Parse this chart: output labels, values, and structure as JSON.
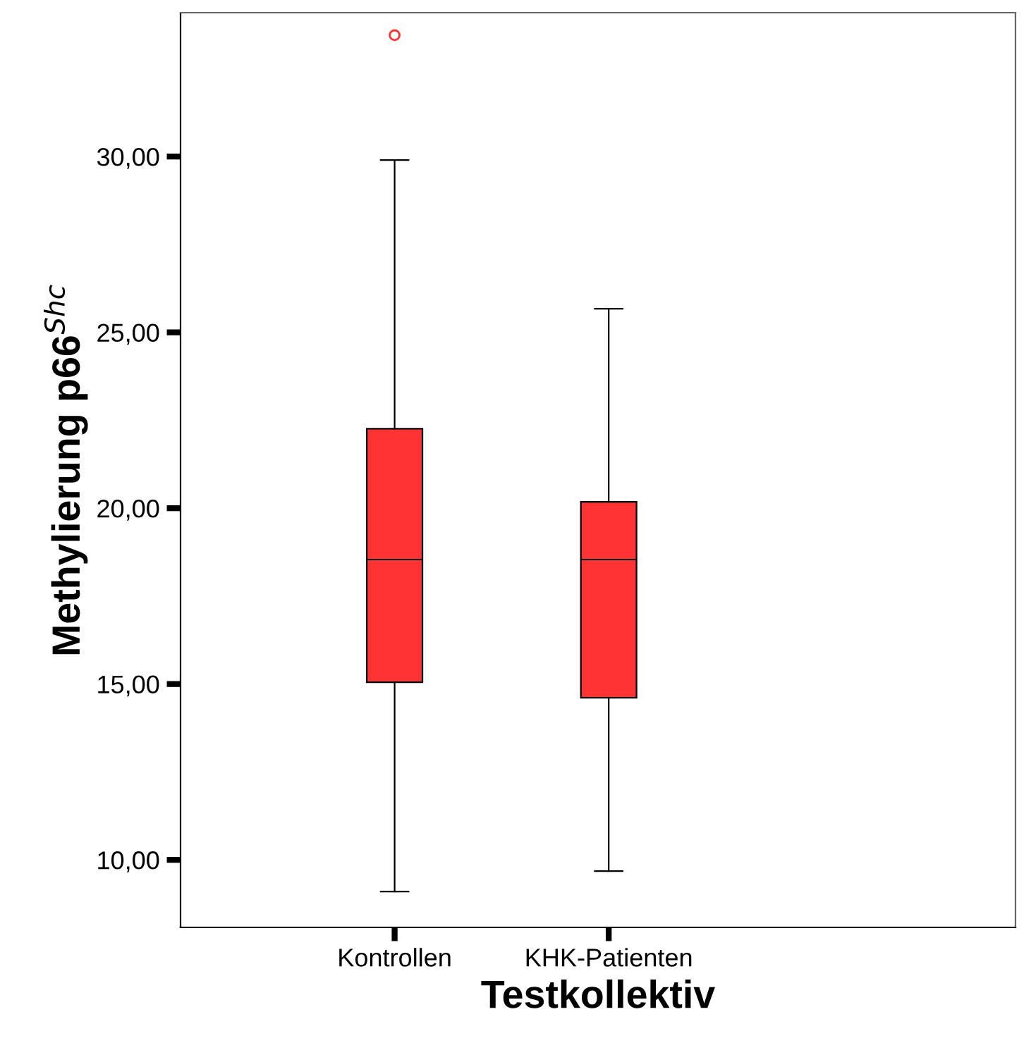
{
  "chart_data": {
    "type": "box",
    "xlabel": "Testkollektiv",
    "ylabel": "Methylierung p66$^{Shc}$",
    "categories": [
      "Kontrollen",
      "KHK-Patienten"
    ],
    "series": [
      {
        "color": "#ff3333",
        "boxes": [
          {
            "low": 9.1,
            "q1": 15.05,
            "median": 18.54,
            "q3": 22.26,
            "high": 29.9,
            "outliers": [
              33.45
            ]
          },
          {
            "low": 9.68,
            "q1": 14.61,
            "median": 18.54,
            "q3": 20.18,
            "high": 25.67
          }
        ]
      }
    ],
    "ylim": [
      8.08,
      34.09
    ],
    "yticks": [
      {
        "value": 10,
        "label": "10,00"
      },
      {
        "value": 15,
        "label": "15,00"
      },
      {
        "value": 20,
        "label": "20,00"
      },
      {
        "value": 25,
        "label": "25,00"
      },
      {
        "value": 30,
        "label": "30,00"
      }
    ],
    "grid": false,
    "legend": false
  }
}
